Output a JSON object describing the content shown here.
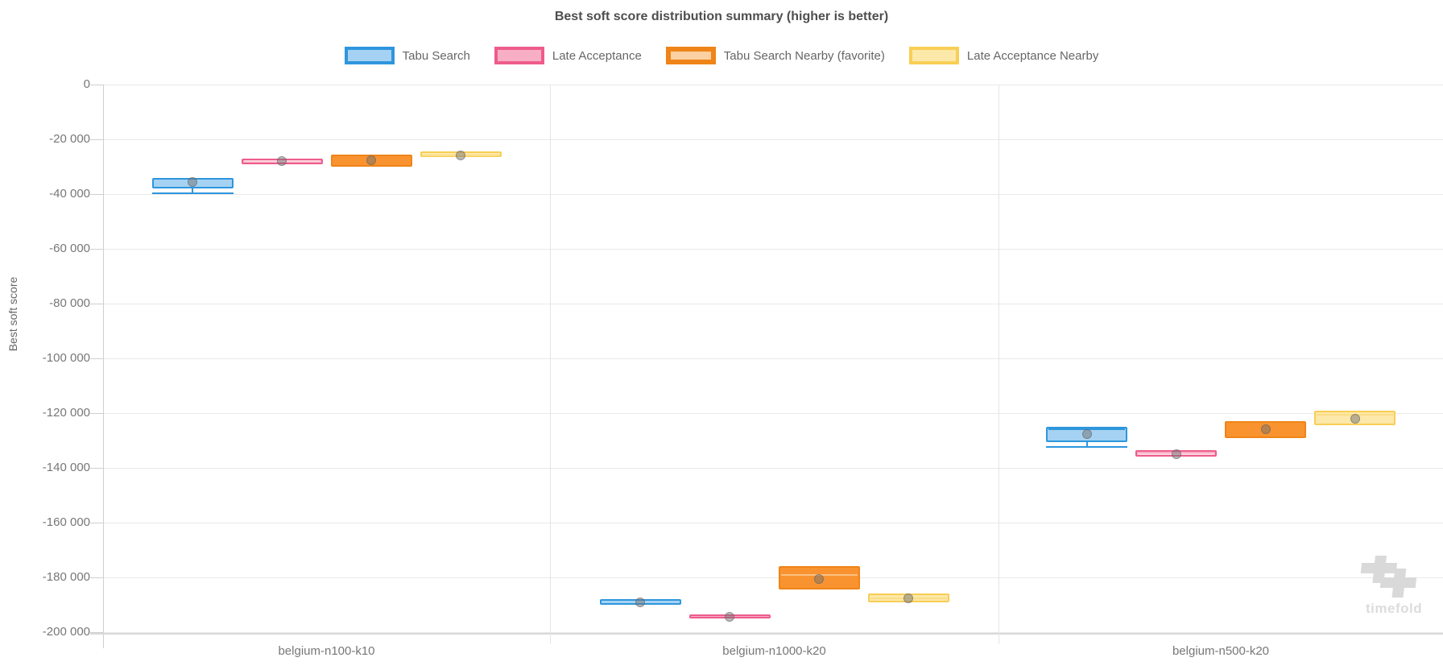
{
  "chart_data": {
    "type": "boxplot",
    "title": "Best soft score distribution summary (higher is better)",
    "ylabel": "Best soft score",
    "xlabel": "",
    "ylim": [
      -200000,
      0
    ],
    "ytick_step": 20000,
    "ytick_labels": [
      "0",
      "-20 000",
      "-40 000",
      "-60 000",
      "-80 000",
      "-100 000",
      "-120 000",
      "-140 000",
      "-160 000",
      "-180 000",
      "-200 000"
    ],
    "grid": true,
    "legend_position": "top",
    "categories": [
      "belgium-n100-k10",
      "belgium-n1000-k20",
      "belgium-n500-k20"
    ],
    "mean_dot_color": "#6e6e6e",
    "series": [
      {
        "name": "Tabu Search",
        "fill": "#a5d2f2",
        "stroke": "#2e96dd",
        "median_color": "#2e96dd",
        "legend_border_width": 4,
        "boxes": [
          {
            "high": -34000,
            "low": -38000,
            "median": -34500,
            "mean": -35500,
            "whisker_low": -39500
          },
          {
            "high": -188000,
            "low": -190000,
            "median": null,
            "mean": -189000,
            "whisker_low": null
          },
          {
            "high": -125000,
            "low": -130500,
            "median": -126000,
            "mean": -127500,
            "whisker_low": -132000
          }
        ]
      },
      {
        "name": "Late Acceptance",
        "fill": "#f8afc6",
        "stroke": "#ee5c8c",
        "median_color": "#fbd4e0",
        "legend_border_width": 4,
        "boxes": [
          {
            "high": -27000,
            "low": -29000,
            "median": -28000,
            "mean": -28000,
            "whisker_low": null
          },
          {
            "high": -193500,
            "low": -195000,
            "median": null,
            "mean": -194500,
            "whisker_low": null
          },
          {
            "high": -133500,
            "low": -136000,
            "median": -135000,
            "mean": -135000,
            "whisker_low": null
          }
        ]
      },
      {
        "name": "Tabu Search Nearby (favorite)",
        "fill": "#f99330",
        "stroke": "#ef8418",
        "median_color": "#fcc083",
        "legend_fill": "#fbd0a2",
        "legend_border_width": 6,
        "boxes": [
          {
            "high": -25500,
            "low": -30000,
            "median": null,
            "mean": -27500,
            "whisker_low": null
          },
          {
            "high": -176000,
            "low": -184500,
            "median": -179000,
            "mean": -180500,
            "whisker_low": null
          },
          {
            "high": -123000,
            "low": -129000,
            "median": null,
            "mean": -126000,
            "whisker_low": null
          }
        ]
      },
      {
        "name": "Late Acceptance Nearby",
        "fill": "#fce8a9",
        "stroke": "#f8ce55",
        "median_color": "#fadd85",
        "legend_border_width": 4,
        "boxes": [
          {
            "high": -24500,
            "low": -26500,
            "median": -26000,
            "mean": -26000,
            "whisker_low": null
          },
          {
            "high": -186000,
            "low": -189000,
            "median": -187500,
            "mean": -187500,
            "whisker_low": null
          },
          {
            "high": -119000,
            "low": -124500,
            "median": -120500,
            "mean": -122000,
            "whisker_low": null
          }
        ]
      }
    ]
  },
  "watermark": {
    "text": "timefold"
  }
}
